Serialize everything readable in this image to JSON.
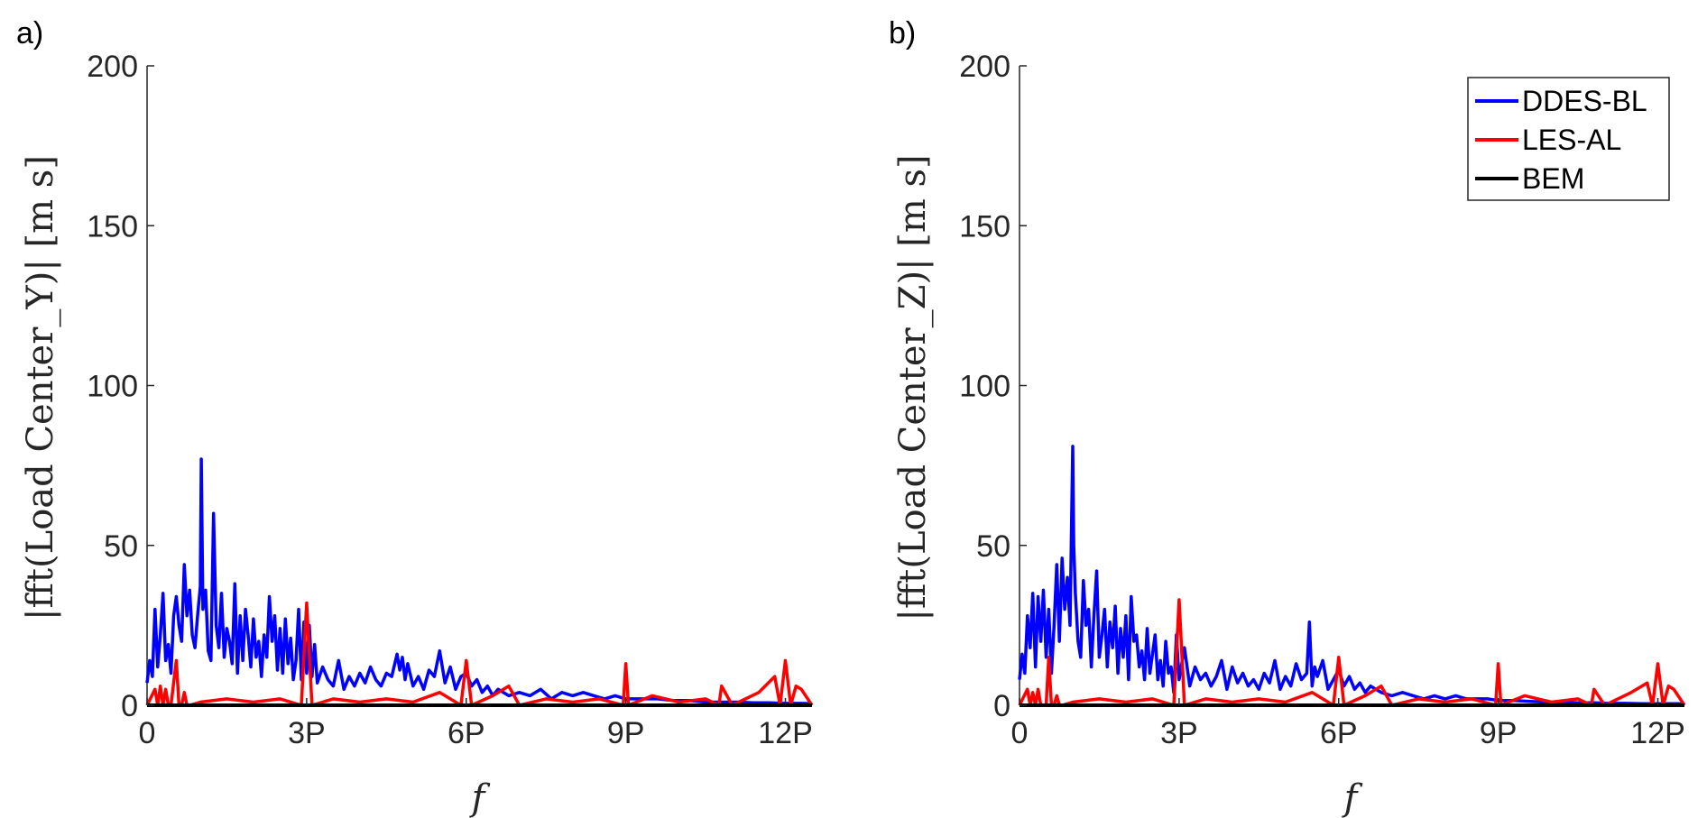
{
  "figure": {
    "colors": {
      "axis": "#262626",
      "DDES-BL": "#0000ff",
      "LES-AL": "#ff0000",
      "BEM": "#000000"
    }
  },
  "chart_data": [
    {
      "type": "line",
      "panel_label": "a)",
      "xlabel": "f",
      "ylabel": "|fft(Load Center_Y)| [m s]",
      "xlim": [
        0,
        12.5
      ],
      "ylim": [
        0,
        200
      ],
      "xticks": [
        0,
        3,
        6,
        9,
        12
      ],
      "xtick_labels": [
        "0",
        "3P",
        "6P",
        "9P",
        "12P"
      ],
      "yticks": [
        0,
        50,
        100,
        150,
        200
      ],
      "ytick_labels": [
        "0",
        "50",
        "100",
        "150",
        "200"
      ],
      "grid": false,
      "legend": null,
      "series": [
        {
          "name": "DDES-BL",
          "color": "#0000ff",
          "x": [
            0,
            0.05,
            0.1,
            0.15,
            0.2,
            0.25,
            0.3,
            0.35,
            0.4,
            0.45,
            0.5,
            0.55,
            0.6,
            0.65,
            0.7,
            0.75,
            0.8,
            0.85,
            0.9,
            0.95,
            1.0,
            1.02,
            1.05,
            1.1,
            1.15,
            1.2,
            1.25,
            1.3,
            1.35,
            1.4,
            1.45,
            1.5,
            1.55,
            1.6,
            1.65,
            1.7,
            1.75,
            1.8,
            1.85,
            1.9,
            1.95,
            2.0,
            2.05,
            2.1,
            2.15,
            2.2,
            2.25,
            2.3,
            2.35,
            2.4,
            2.45,
            2.5,
            2.55,
            2.6,
            2.65,
            2.7,
            2.75,
            2.8,
            2.85,
            2.9,
            2.95,
            3.0,
            3.05,
            3.1,
            3.15,
            3.2,
            3.3,
            3.4,
            3.5,
            3.6,
            3.7,
            3.8,
            3.9,
            4.0,
            4.1,
            4.2,
            4.3,
            4.4,
            4.5,
            4.6,
            4.7,
            4.75,
            4.8,
            4.85,
            4.9,
            5.0,
            5.1,
            5.2,
            5.3,
            5.4,
            5.5,
            5.6,
            5.7,
            5.8,
            5.9,
            6.0,
            6.1,
            6.2,
            6.3,
            6.4,
            6.5,
            6.6,
            6.8,
            7.0,
            7.2,
            7.4,
            7.6,
            7.8,
            8.0,
            8.2,
            8.4,
            8.6,
            8.8,
            9.0,
            9.3,
            9.6,
            9.9,
            10.2,
            10.5,
            10.8,
            11.1,
            11.4,
            11.7,
            12.0,
            12.3,
            12.5
          ],
          "y": [
            7,
            14,
            9,
            30,
            12,
            22,
            35,
            14,
            19,
            10,
            28,
            34,
            25,
            20,
            44,
            28,
            36,
            22,
            18,
            28,
            37,
            77,
            30,
            36,
            17,
            14,
            60,
            25,
            18,
            35,
            15,
            24,
            20,
            13,
            38,
            10,
            28,
            14,
            30,
            22,
            12,
            27,
            15,
            20,
            9,
            22,
            15,
            34,
            20,
            28,
            11,
            24,
            10,
            27,
            13,
            21,
            8,
            14,
            30,
            8,
            26,
            10,
            25,
            9,
            19,
            7,
            12,
            8,
            6,
            14,
            5,
            9,
            6,
            10,
            7,
            12,
            8,
            6,
            10,
            9,
            16,
            11,
            15,
            8,
            13,
            6,
            9,
            5,
            11,
            9,
            17,
            7,
            12,
            5,
            9,
            10,
            6,
            8,
            4,
            6,
            3,
            5,
            3,
            4,
            3,
            5,
            2,
            4,
            3,
            4,
            3,
            2,
            3,
            2,
            2,
            2,
            1.5,
            1.5,
            1,
            1,
            1,
            0.8,
            0.8,
            0.6,
            0.6,
            0.5
          ]
        },
        {
          "name": "LES-AL",
          "color": "#ff0000",
          "x": [
            0,
            0.15,
            0.2,
            0.25,
            0.3,
            0.35,
            0.4,
            0.45,
            0.55,
            0.6,
            0.65,
            0.7,
            0.75,
            0.8,
            1.0,
            1.5,
            2.0,
            2.5,
            2.9,
            3.0,
            3.1,
            3.5,
            4.0,
            4.5,
            5.0,
            5.5,
            5.9,
            6.0,
            6.1,
            6.5,
            6.8,
            7.0,
            7.5,
            8.0,
            8.5,
            8.95,
            9.0,
            9.05,
            9.5,
            10.0,
            10.5,
            10.75,
            10.8,
            11.0,
            11.5,
            11.8,
            11.9,
            12.0,
            12.1,
            12.2,
            12.3,
            12.5
          ],
          "y": [
            0,
            5,
            0,
            6,
            0,
            5,
            0,
            0,
            14,
            0,
            0,
            4,
            0,
            0,
            1,
            2,
            1,
            2,
            0,
            32,
            0,
            2,
            1,
            2,
            1,
            4,
            0,
            14,
            0,
            3,
            6,
            0,
            2,
            1,
            2,
            0,
            13,
            0,
            3,
            1,
            2,
            0,
            6,
            0,
            4,
            9,
            0,
            14,
            0,
            6,
            5,
            0
          ]
        },
        {
          "name": "BEM",
          "color": "#000000",
          "x": [
            0,
            12.5
          ],
          "y": [
            0,
            0
          ]
        }
      ]
    },
    {
      "type": "line",
      "panel_label": "b)",
      "xlabel": "f",
      "ylabel": "|fft(Load Center_Z)| [m s]",
      "xlim": [
        0,
        12.5
      ],
      "ylim": [
        0,
        200
      ],
      "xticks": [
        0,
        3,
        6,
        9,
        12
      ],
      "xtick_labels": [
        "0",
        "3P",
        "6P",
        "9P",
        "12P"
      ],
      "yticks": [
        0,
        50,
        100,
        150,
        200
      ],
      "ytick_labels": [
        "0",
        "50",
        "100",
        "150",
        "200"
      ],
      "grid": false,
      "legend": {
        "position": "top-right",
        "entries": [
          "DDES-BL",
          "LES-AL",
          "BEM"
        ]
      },
      "series": [
        {
          "name": "DDES-BL",
          "color": "#0000ff",
          "x": [
            0,
            0.05,
            0.1,
            0.15,
            0.2,
            0.25,
            0.3,
            0.35,
            0.4,
            0.45,
            0.5,
            0.55,
            0.6,
            0.65,
            0.7,
            0.75,
            0.8,
            0.85,
            0.9,
            0.95,
            1.0,
            1.02,
            1.05,
            1.1,
            1.15,
            1.2,
            1.25,
            1.3,
            1.35,
            1.4,
            1.45,
            1.5,
            1.55,
            1.6,
            1.65,
            1.7,
            1.75,
            1.8,
            1.85,
            1.9,
            1.95,
            2.0,
            2.05,
            2.1,
            2.15,
            2.2,
            2.25,
            2.3,
            2.35,
            2.4,
            2.45,
            2.5,
            2.55,
            2.6,
            2.65,
            2.7,
            2.75,
            2.8,
            2.85,
            2.9,
            2.95,
            3.0,
            3.1,
            3.2,
            3.3,
            3.4,
            3.5,
            3.6,
            3.7,
            3.8,
            3.9,
            4.0,
            4.1,
            4.2,
            4.3,
            4.4,
            4.5,
            4.6,
            4.7,
            4.8,
            4.9,
            5.0,
            5.1,
            5.2,
            5.3,
            5.4,
            5.45,
            5.5,
            5.55,
            5.6,
            5.7,
            5.8,
            5.9,
            6.0,
            6.1,
            6.2,
            6.3,
            6.4,
            6.5,
            6.6,
            6.8,
            7.0,
            7.2,
            7.4,
            7.6,
            7.8,
            8.0,
            8.2,
            8.4,
            8.6,
            8.8,
            9.0,
            9.3,
            9.6,
            9.9,
            10.2,
            10.5,
            10.8,
            11.1,
            11.4,
            11.7,
            12.0,
            12.3,
            12.5
          ],
          "y": [
            8,
            16,
            10,
            28,
            18,
            35,
            12,
            34,
            20,
            36,
            15,
            30,
            10,
            25,
            44,
            20,
            46,
            30,
            40,
            25,
            81,
            50,
            35,
            20,
            15,
            39,
            25,
            30,
            12,
            28,
            42,
            15,
            22,
            30,
            12,
            26,
            18,
            31,
            10,
            24,
            15,
            28,
            8,
            34,
            20,
            22,
            12,
            17,
            8,
            24,
            10,
            16,
            22,
            8,
            14,
            6,
            20,
            10,
            12,
            4,
            22,
            8,
            18,
            6,
            12,
            8,
            10,
            6,
            9,
            14,
            5,
            12,
            7,
            10,
            6,
            8,
            5,
            10,
            7,
            14,
            5,
            9,
            6,
            13,
            8,
            10,
            26,
            6,
            12,
            9,
            14,
            5,
            8,
            11,
            6,
            9,
            5,
            7,
            4,
            6,
            4,
            3,
            4,
            3,
            2,
            3,
            2,
            3,
            2,
            2,
            2,
            1.5,
            1.5,
            1.2,
            1,
            1,
            0.8,
            0.8,
            0.6,
            0.6,
            0.5,
            0.5,
            0.5,
            0.5
          ]
        },
        {
          "name": "LES-AL",
          "color": "#ff0000",
          "x": [
            0,
            0.15,
            0.2,
            0.25,
            0.3,
            0.35,
            0.4,
            0.5,
            0.55,
            0.6,
            0.65,
            0.7,
            0.75,
            0.8,
            1.0,
            1.5,
            2.0,
            2.5,
            2.9,
            3.0,
            3.1,
            3.5,
            4.0,
            4.5,
            5.0,
            5.5,
            5.9,
            6.0,
            6.1,
            6.5,
            6.8,
            7.0,
            7.5,
            8.0,
            8.5,
            8.95,
            9.0,
            9.05,
            9.5,
            10.0,
            10.5,
            10.75,
            10.8,
            11.0,
            11.5,
            11.8,
            11.9,
            12.0,
            12.1,
            12.2,
            12.3,
            12.5
          ],
          "y": [
            0,
            5,
            0,
            4,
            0,
            5,
            0,
            0,
            15,
            0,
            0,
            3,
            0,
            0,
            1,
            2,
            1,
            2,
            0,
            33,
            0,
            2,
            1,
            2,
            1,
            4,
            0,
            15,
            0,
            3,
            6,
            0,
            2,
            1,
            2,
            0,
            13,
            0,
            3,
            1,
            2,
            0,
            5,
            0,
            4,
            7,
            0,
            13,
            0,
            6,
            5,
            0
          ]
        },
        {
          "name": "BEM",
          "color": "#000000",
          "x": [
            0,
            12.5
          ],
          "y": [
            0,
            0
          ]
        }
      ]
    }
  ]
}
